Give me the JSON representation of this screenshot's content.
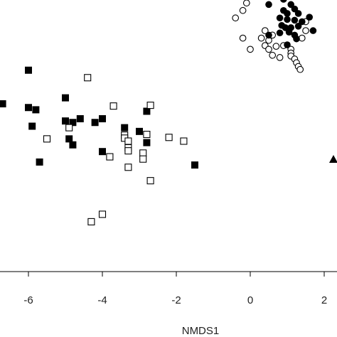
{
  "chart_data": {
    "type": "scatter",
    "xlabel": "NMDS1",
    "xlim": [
      -6.7,
      2.15
    ],
    "ylim": [
      -1.0,
      2.6
    ],
    "x_ticks": [
      -6,
      -4,
      -2,
      0,
      2
    ],
    "x_tick_labels": [
      "-6",
      "-4",
      "-2",
      "0",
      "2"
    ],
    "grid": false,
    "series": [
      {
        "marker": "filled-square",
        "color": "#000000",
        "points": [
          [
            -6.7,
            1.2
          ],
          [
            -6.0,
            1.65
          ],
          [
            -6.0,
            1.15
          ],
          [
            -5.8,
            1.12
          ],
          [
            -5.9,
            0.9
          ],
          [
            -5.0,
            1.28
          ],
          [
            -5.0,
            0.97
          ],
          [
            -4.8,
            0.95
          ],
          [
            -4.6,
            1.0
          ],
          [
            -4.9,
            0.73
          ],
          [
            -4.8,
            0.65
          ],
          [
            -5.7,
            0.42
          ],
          [
            -4.2,
            0.95
          ],
          [
            -4.0,
            1.0
          ],
          [
            -3.4,
            0.88
          ],
          [
            -3.0,
            0.83
          ],
          [
            -2.8,
            1.1
          ],
          [
            -2.8,
            0.68
          ],
          [
            -4.0,
            0.56
          ],
          [
            -1.5,
            0.38
          ]
        ]
      },
      {
        "marker": "open-square",
        "color": "#000000",
        "points": [
          [
            -4.4,
            1.55
          ],
          [
            -3.7,
            1.17
          ],
          [
            -2.7,
            1.18
          ],
          [
            -4.9,
            0.88
          ],
          [
            -5.5,
            0.73
          ],
          [
            -3.4,
            0.78
          ],
          [
            -3.4,
            0.74
          ],
          [
            -3.3,
            0.7
          ],
          [
            -2.8,
            0.79
          ],
          [
            -2.2,
            0.75
          ],
          [
            -1.8,
            0.7
          ],
          [
            -3.3,
            0.61
          ],
          [
            -3.3,
            0.57
          ],
          [
            -2.9,
            0.54
          ],
          [
            -3.8,
            0.49
          ],
          [
            -2.9,
            0.46
          ],
          [
            -3.3,
            0.35
          ],
          [
            -2.7,
            0.17
          ],
          [
            -4.0,
            -0.28
          ],
          [
            -4.3,
            -0.38
          ]
        ]
      },
      {
        "marker": "open-circle",
        "color": "#000000",
        "points": [
          [
            -0.1,
            2.55
          ],
          [
            -0.2,
            2.45
          ],
          [
            -0.4,
            2.35
          ],
          [
            -0.2,
            2.08
          ],
          [
            0.3,
            2.08
          ],
          [
            0.4,
            2.18
          ],
          [
            0.6,
            2.12
          ],
          [
            0.5,
            2.05
          ],
          [
            1.5,
            2.3
          ],
          [
            1.5,
            2.18
          ],
          [
            1.4,
            2.08
          ],
          [
            0.7,
            1.97
          ],
          [
            0.4,
            1.98
          ],
          [
            0.0,
            1.93
          ],
          [
            0.5,
            1.93
          ],
          [
            0.9,
            1.98
          ],
          [
            1.1,
            1.93
          ],
          [
            1.1,
            1.88
          ],
          [
            0.6,
            1.85
          ],
          [
            0.8,
            1.82
          ],
          [
            1.1,
            1.84
          ],
          [
            1.2,
            1.8
          ],
          [
            1.25,
            1.75
          ],
          [
            1.3,
            1.7
          ],
          [
            1.35,
            1.66
          ]
        ]
      },
      {
        "marker": "filled-circle",
        "color": "#000000",
        "points": [
          [
            1.2,
            2.73
          ],
          [
            1.3,
            2.68
          ],
          [
            0.9,
            2.6
          ],
          [
            0.5,
            2.53
          ],
          [
            1.1,
            2.53
          ],
          [
            1.2,
            2.47
          ],
          [
            0.9,
            2.45
          ],
          [
            1.0,
            2.41
          ],
          [
            1.3,
            2.41
          ],
          [
            1.6,
            2.36
          ],
          [
            0.8,
            2.35
          ],
          [
            1.0,
            2.33
          ],
          [
            1.2,
            2.32
          ],
          [
            1.4,
            2.3
          ],
          [
            0.85,
            2.25
          ],
          [
            0.95,
            2.22
          ],
          [
            1.1,
            2.22
          ],
          [
            1.3,
            2.24
          ],
          [
            1.2,
            2.12
          ],
          [
            1.7,
            2.18
          ],
          [
            0.8,
            2.15
          ],
          [
            1.05,
            2.16
          ],
          [
            1.25,
            2.07
          ],
          [
            0.5,
            2.12
          ],
          [
            1.0,
            1.99
          ]
        ]
      }
    ],
    "partial_marker": {
      "marker": "filled-triangle",
      "color": "#000000",
      "point": [
        2.25,
        0.92
      ]
    }
  }
}
